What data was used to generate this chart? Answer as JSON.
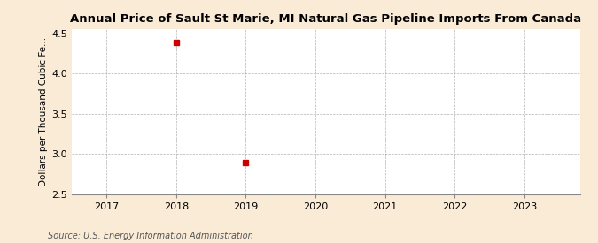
{
  "title": "Annual Price of Sault St Marie, MI Natural Gas Pipeline Imports From Canada",
  "ylabel": "Dollars per Thousand Cubic Fe...",
  "source": "Source: U.S. Energy Information Administration",
  "x_data": [
    2018,
    2019
  ],
  "y_data": [
    4.39,
    2.89
  ],
  "marker_color": "#cc0000",
  "marker_style": "s",
  "marker_size": 4,
  "xlim": [
    2016.5,
    2023.8
  ],
  "ylim": [
    2.5,
    4.55
  ],
  "yticks": [
    2.5,
    3.0,
    3.5,
    4.0,
    4.5
  ],
  "xticks": [
    2017,
    2018,
    2019,
    2020,
    2021,
    2022,
    2023
  ],
  "background_color": "#faebd7",
  "plot_bg_color": "#ffffff",
  "grid_color": "#aaaaaa",
  "title_fontsize": 9.5,
  "label_fontsize": 7.5,
  "tick_fontsize": 8,
  "source_fontsize": 7
}
